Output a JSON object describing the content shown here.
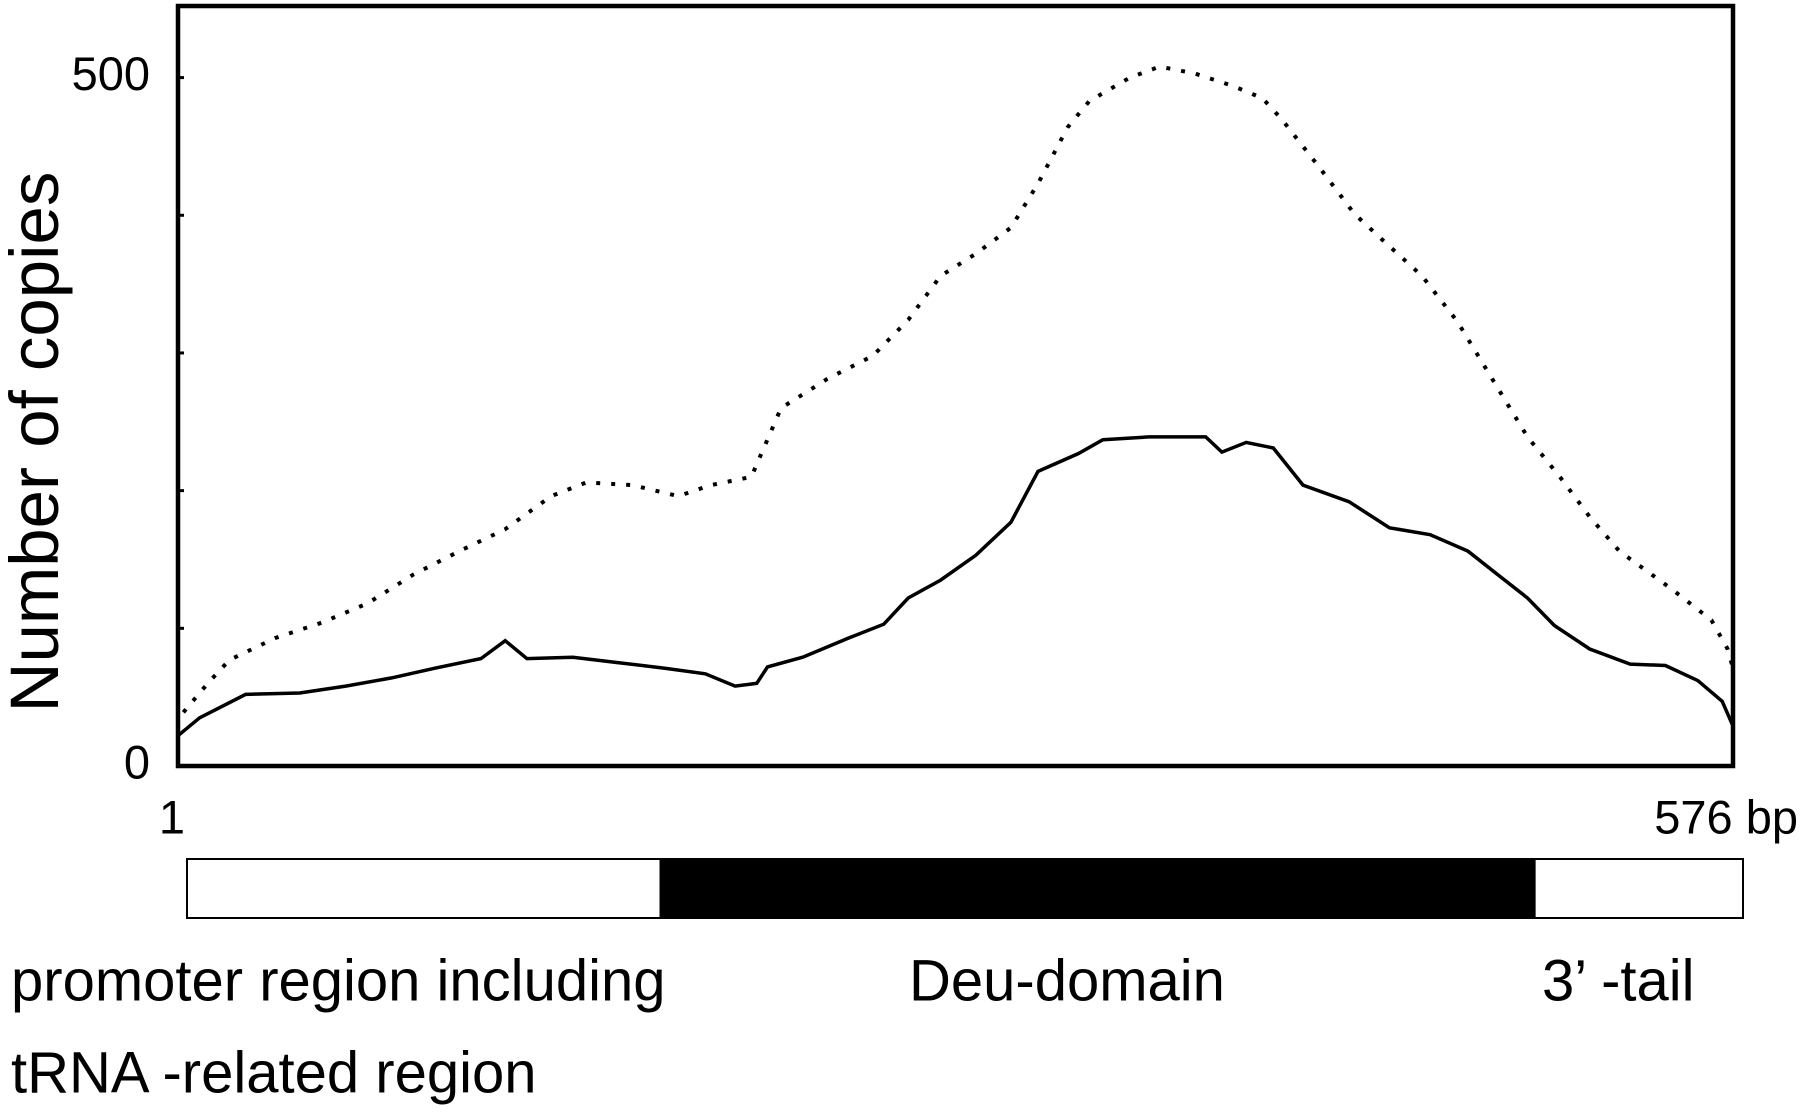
{
  "chart_data": {
    "type": "line",
    "y_label": "Number of copies",
    "xlim": [
      1,
      576
    ],
    "xticks": [
      1,
      {
        "value": 576,
        "label": "576 bp"
      }
    ],
    "ylim": [
      0,
      552
    ],
    "yticks": [
      0,
      500
    ],
    "minor_yticks": [
      100,
      200,
      300,
      400
    ],
    "series": [
      {
        "style": "dotted",
        "color": "#000000",
        "x": [
          3,
          12,
          20,
          37,
          54,
          71,
          88,
          105,
          122,
          139,
          152,
          169,
          186,
          198,
          213,
          224,
          241,
          258,
          271,
          283,
          296,
          309,
          319,
          330,
          338,
          353,
          364,
          377,
          391,
          402,
          409,
          423,
          436,
          447,
          461,
          474,
          487,
          500,
          512,
          523,
          534,
          553,
          568,
          574,
          576
        ],
        "values": [
          39,
          60,
          77,
          93,
          104,
          118,
          139,
          156,
          172,
          196,
          206,
          204,
          196,
          204,
          210,
          260,
          281,
          298,
          324,
          356,
          372,
          391,
          423,
          464,
          483,
          500,
          508,
          503,
          494,
          485,
          470,
          435,
          401,
          381,
          356,
          323,
          281,
          239,
          210,
          181,
          156,
          129,
          106,
          85,
          71
        ]
      },
      {
        "style": "solid",
        "color": "#000000",
        "x": [
          1,
          9,
          26,
          46,
          63,
          80,
          96,
          113,
          122,
          130,
          147,
          164,
          181,
          196,
          207,
          215,
          219,
          232,
          249,
          262,
          271,
          283,
          296,
          309,
          319,
          334,
          343,
          360,
          381,
          387,
          396,
          406,
          417,
          434,
          449,
          464,
          478,
          489,
          500,
          510,
          523,
          538,
          551,
          563,
          572,
          576
        ],
        "values": [
          22,
          35,
          52,
          53,
          58,
          64,
          71,
          78,
          91,
          78,
          79,
          75,
          71,
          67,
          58,
          60,
          72,
          79,
          93,
          103,
          122,
          135,
          153,
          177,
          214,
          227,
          237,
          239,
          239,
          228,
          235,
          231,
          204,
          192,
          173,
          168,
          156,
          139,
          122,
          102,
          85,
          74,
          73,
          62,
          47,
          29
        ]
      }
    ],
    "regions": [
      {
        "start": 1,
        "end": 176,
        "color": "#ffffff",
        "label": [
          "promoter region including",
          "tRNA -related region"
        ]
      },
      {
        "start": 176,
        "end": 499,
        "color": "#000000",
        "label": [
          "Deu-domain"
        ]
      },
      {
        "start": 499,
        "end": 576,
        "color": "#ffffff",
        "label": [
          "3’ -tail"
        ]
      }
    ]
  }
}
